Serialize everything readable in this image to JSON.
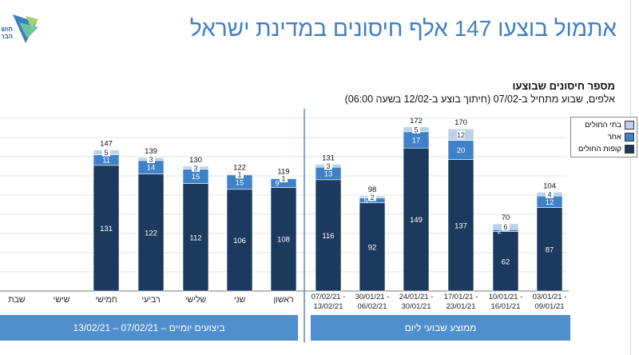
{
  "header": {
    "title": "אתמול בוצעו 147 אלף חיסונים במדינת ישראל",
    "logo_text": "חוש הבר"
  },
  "colors": {
    "title": "#3d7fc4",
    "kupot": "#1c3a5e",
    "other": "#3f82c8",
    "hospitals": "#bcd0e6",
    "banner": "#4f8fcd"
  },
  "chart_data": {
    "type": "bar",
    "stacked": true,
    "title": "מספר חיסונים שבוצעו",
    "subtitle": "אלפים, שבוע מתחיל ב-07/02 (חיתוך בוצע ב-12/02 בשעה 06:00)",
    "legend_position": "top-right",
    "series_names": {
      "kupot": "קופות החולים",
      "other": "אחר",
      "hospitals": "בתי החולים"
    },
    "weekly": {
      "group_label": "ממוצע שבועי ליום",
      "categories": [
        [
          "03/01/21 -",
          "09/01/21"
        ],
        [
          "10/01/21 -",
          "16/01/21"
        ],
        [
          "17/01/21 -",
          "23/01/21"
        ],
        [
          "24/01/21 -",
          "30/01/21"
        ],
        [
          "30/01/21 -",
          "06/02/21"
        ],
        [
          "07/02/21 -",
          "13/02/21"
        ]
      ],
      "kupot": [
        87,
        62,
        137,
        149,
        92,
        116
      ],
      "other": [
        12,
        2,
        20,
        17,
        5,
        13
      ],
      "hospitals": [
        4,
        6,
        12,
        5,
        2,
        3
      ],
      "totals": [
        104,
        70,
        170,
        172,
        98,
        131
      ]
    },
    "daily": {
      "group_label": "ביצועים יומיים – 07/02/21 – 13/02/21",
      "categories": [
        "ראשון",
        "שני",
        "שלישי",
        "רביעי",
        "חמישי",
        "שישי",
        "שבת"
      ],
      "kupot": [
        108,
        106,
        112,
        122,
        131,
        null,
        null
      ],
      "other": [
        9,
        15,
        15,
        14,
        11,
        null,
        null
      ],
      "hospitals": [
        1,
        1,
        3,
        3,
        5,
        null,
        null
      ],
      "totals": [
        119,
        122,
        130,
        139,
        147,
        null,
        null
      ]
    }
  }
}
